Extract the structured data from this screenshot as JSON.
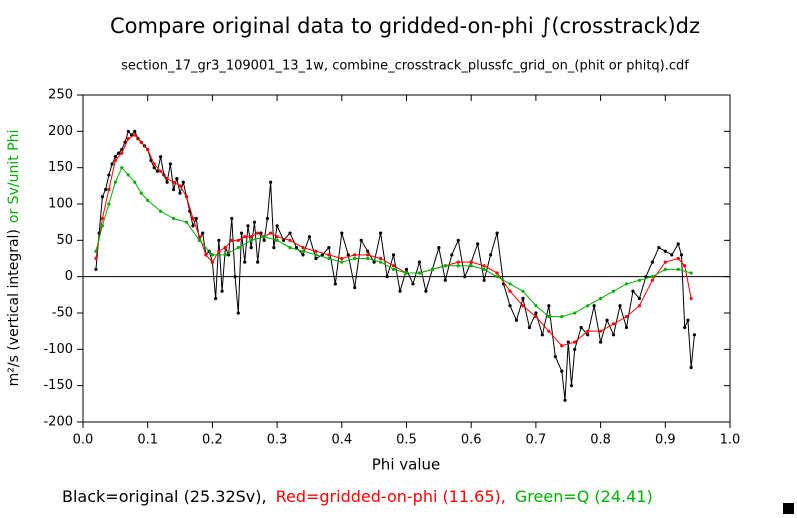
{
  "chart_data": {
    "type": "line",
    "title": "Compare original data to gridded-on-phi ∫(crosstrack)dz",
    "subtitle": "section_17_gr3_109001_13_1w, combine_crosstrack_plussfc_grid_on_(phit or phitq).cdf",
    "xlabel": "Phi value",
    "ylabel": "m²/s (vertical integral)",
    "ylabel_extra": "or Sv/unit Phi",
    "ylabel_extra_color": "#00b000",
    "xlim": [
      0,
      1
    ],
    "ylim": [
      -200,
      250
    ],
    "xticks": [
      {
        "value": 0,
        "label": "0.0"
      },
      0.1,
      0.2,
      0.3,
      0.4,
      0.5,
      0.6,
      0.7,
      0.8,
      0.9,
      {
        "value": 1,
        "label": "1.0"
      }
    ],
    "yticks": [
      -200,
      -150,
      -100,
      -50,
      0,
      50,
      100,
      150,
      200,
      250
    ],
    "zero_line": true,
    "series": [
      {
        "name": "Black=original (25.32Sv),",
        "color": "#000000",
        "x": [
          0.02,
          0.025,
          0.03,
          0.035,
          0.04,
          0.045,
          0.05,
          0.055,
          0.06,
          0.065,
          0.07,
          0.075,
          0.08,
          0.085,
          0.09,
          0.095,
          0.1,
          0.105,
          0.11,
          0.115,
          0.12,
          0.125,
          0.13,
          0.135,
          0.14,
          0.145,
          0.15,
          0.155,
          0.16,
          0.165,
          0.17,
          0.175,
          0.18,
          0.185,
          0.19,
          0.195,
          0.2,
          0.205,
          0.21,
          0.215,
          0.22,
          0.225,
          0.23,
          0.235,
          0.24,
          0.245,
          0.25,
          0.255,
          0.26,
          0.265,
          0.27,
          0.275,
          0.28,
          0.285,
          0.29,
          0.295,
          0.3,
          0.31,
          0.32,
          0.33,
          0.34,
          0.35,
          0.36,
          0.37,
          0.38,
          0.39,
          0.4,
          0.41,
          0.42,
          0.43,
          0.44,
          0.45,
          0.46,
          0.47,
          0.48,
          0.49,
          0.5,
          0.51,
          0.52,
          0.53,
          0.54,
          0.55,
          0.56,
          0.57,
          0.58,
          0.59,
          0.6,
          0.61,
          0.62,
          0.63,
          0.64,
          0.65,
          0.66,
          0.67,
          0.68,
          0.69,
          0.7,
          0.71,
          0.72,
          0.73,
          0.74,
          0.745,
          0.75,
          0.755,
          0.76,
          0.77,
          0.78,
          0.79,
          0.8,
          0.81,
          0.82,
          0.83,
          0.84,
          0.85,
          0.86,
          0.87,
          0.88,
          0.89,
          0.9,
          0.91,
          0.92,
          0.925,
          0.93,
          0.935,
          0.94,
          0.945
        ],
        "values": [
          10,
          60,
          110,
          120,
          140,
          155,
          165,
          170,
          175,
          185,
          200,
          195,
          200,
          190,
          185,
          180,
          175,
          160,
          150,
          145,
          165,
          140,
          130,
          155,
          120,
          135,
          115,
          130,
          110,
          90,
          70,
          80,
          50,
          60,
          30,
          35,
          20,
          -30,
          50,
          -20,
          40,
          30,
          80,
          0,
          -50,
          60,
          20,
          70,
          40,
          75,
          20,
          60,
          50,
          80,
          130,
          40,
          70,
          50,
          60,
          40,
          30,
          55,
          25,
          30,
          40,
          -10,
          60,
          30,
          -15,
          50,
          35,
          20,
          60,
          0,
          30,
          -20,
          10,
          -10,
          20,
          -20,
          10,
          40,
          -5,
          30,
          50,
          0,
          20,
          45,
          -5,
          30,
          60,
          -10,
          -40,
          -60,
          -30,
          -70,
          -50,
          -80,
          -40,
          -110,
          -130,
          -170,
          -90,
          -150,
          -100,
          -70,
          -80,
          -40,
          -90,
          -60,
          -80,
          -40,
          -70,
          -20,
          -30,
          0,
          20,
          40,
          35,
          30,
          45,
          30,
          -70,
          -60,
          -125,
          -80
        ]
      },
      {
        "name": "Red=gridded-on-phi (11.65),",
        "color": "#ff0000",
        "x": [
          0.02,
          0.03,
          0.04,
          0.05,
          0.06,
          0.07,
          0.08,
          0.09,
          0.1,
          0.11,
          0.12,
          0.13,
          0.14,
          0.15,
          0.16,
          0.17,
          0.18,
          0.19,
          0.2,
          0.21,
          0.22,
          0.23,
          0.24,
          0.25,
          0.26,
          0.27,
          0.28,
          0.29,
          0.3,
          0.32,
          0.34,
          0.36,
          0.38,
          0.4,
          0.42,
          0.44,
          0.46,
          0.48,
          0.5,
          0.52,
          0.54,
          0.56,
          0.58,
          0.6,
          0.62,
          0.64,
          0.66,
          0.68,
          0.7,
          0.72,
          0.74,
          0.76,
          0.78,
          0.8,
          0.82,
          0.84,
          0.86,
          0.88,
          0.9,
          0.92,
          0.93,
          0.94
        ],
        "values": [
          25,
          80,
          120,
          160,
          170,
          190,
          195,
          185,
          175,
          155,
          145,
          135,
          130,
          125,
          110,
          80,
          55,
          30,
          20,
          35,
          40,
          50,
          50,
          55,
          55,
          60,
          55,
          60,
          55,
          50,
          40,
          35,
          30,
          25,
          30,
          30,
          25,
          15,
          5,
          5,
          10,
          15,
          20,
          20,
          15,
          5,
          -20,
          -40,
          -55,
          -75,
          -95,
          -90,
          -75,
          -75,
          -65,
          -55,
          -40,
          -5,
          20,
          25,
          15,
          -30
        ]
      },
      {
        "name": "Green=Q (24.41)",
        "color": "#00b000",
        "x": [
          0.02,
          0.03,
          0.04,
          0.05,
          0.06,
          0.07,
          0.08,
          0.09,
          0.1,
          0.12,
          0.14,
          0.16,
          0.18,
          0.2,
          0.22,
          0.24,
          0.26,
          0.28,
          0.3,
          0.32,
          0.34,
          0.36,
          0.38,
          0.4,
          0.42,
          0.44,
          0.46,
          0.48,
          0.5,
          0.52,
          0.54,
          0.56,
          0.58,
          0.6,
          0.62,
          0.64,
          0.66,
          0.68,
          0.7,
          0.72,
          0.74,
          0.76,
          0.78,
          0.8,
          0.82,
          0.84,
          0.86,
          0.88,
          0.9,
          0.92,
          0.94
        ],
        "values": [
          35,
          70,
          100,
          130,
          150,
          140,
          130,
          115,
          105,
          90,
          80,
          75,
          50,
          30,
          30,
          40,
          50,
          55,
          50,
          40,
          35,
          30,
          25,
          20,
          25,
          25,
          20,
          10,
          5,
          5,
          10,
          15,
          15,
          15,
          10,
          0,
          -10,
          -20,
          -40,
          -55,
          -55,
          -50,
          -40,
          -30,
          -20,
          -10,
          -5,
          0,
          10,
          10,
          5
        ]
      }
    ]
  }
}
